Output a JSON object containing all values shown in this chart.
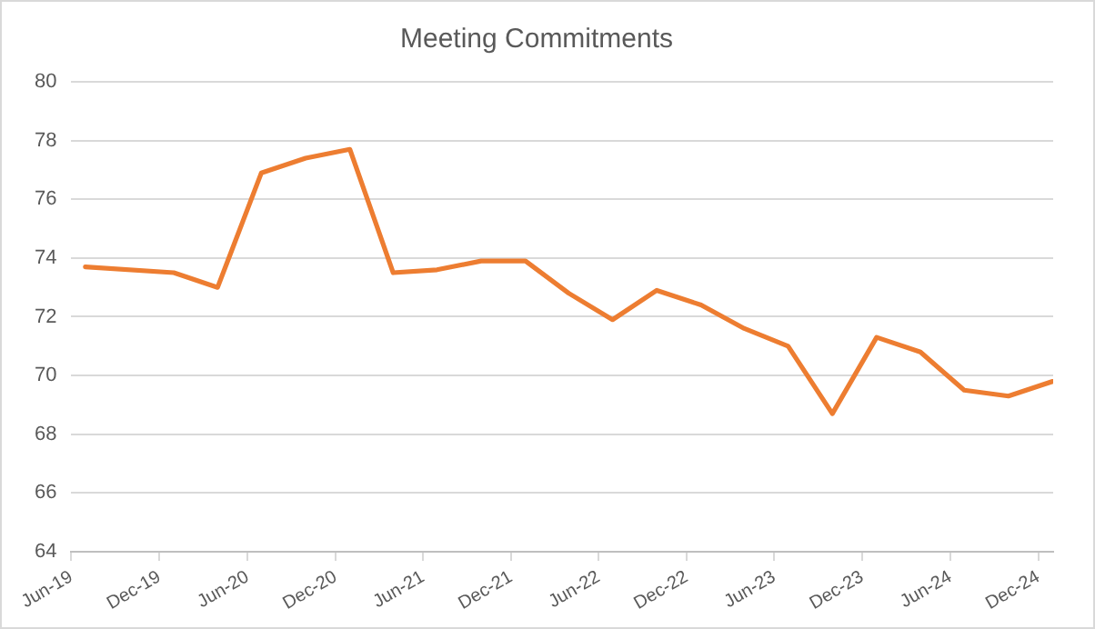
{
  "chart_data": {
    "type": "line",
    "title": "Meeting Commitments",
    "x": [
      "2019-06-30",
      "2019-12-31",
      "2020-03-31",
      "2020-06-30",
      "2020-09-30",
      "2020-12-31",
      "2021-03-31",
      "2021-06-30",
      "2021-09-30",
      "2021-12-31",
      "2022-03-31",
      "2022-06-30",
      "2022-09-30",
      "2022-12-31",
      "2023-03-31",
      "2023-06-30",
      "2023-09-30",
      "2023-12-31",
      "2024-03-31",
      "2024-06-30",
      "2024-09-30",
      "2024-12-31"
    ],
    "series": [
      {
        "color": "#ed7d31",
        "values": [
          73.7,
          73.5,
          73.0,
          76.9,
          77.4,
          77.7,
          73.5,
          73.6,
          73.9,
          73.9,
          72.8,
          71.9,
          72.9,
          72.4,
          71.6,
          71.0,
          68.7,
          71.3,
          70.8,
          69.5,
          69.3,
          69.8
        ]
      }
    ],
    "xlim": [
      "2019-06-01",
      "2025-01-01"
    ],
    "xticks": [
      {
        "value": "2019-06-01",
        "label": "Jun-19"
      },
      {
        "value": "2019-12-01",
        "label": "Dec-19"
      },
      {
        "value": "2020-06-01",
        "label": "Jun-20"
      },
      {
        "value": "2020-12-01",
        "label": "Dec-20"
      },
      {
        "value": "2021-06-01",
        "label": "Jun-21"
      },
      {
        "value": "2021-12-01",
        "label": "Dec-21"
      },
      {
        "value": "2022-06-01",
        "label": "Jun-22"
      },
      {
        "value": "2022-12-01",
        "label": "Dec-22"
      },
      {
        "value": "2023-06-01",
        "label": "Jun-23"
      },
      {
        "value": "2023-12-01",
        "label": "Dec-23"
      },
      {
        "value": "2024-06-01",
        "label": "Jun-24"
      },
      {
        "value": "2024-12-01",
        "label": "Dec-24"
      }
    ],
    "ylim": [
      64,
      80
    ],
    "yticks": [
      64,
      66,
      68,
      70,
      72,
      74,
      76,
      78,
      80
    ],
    "grid": "y",
    "legend": false,
    "marker": "none",
    "line_style": "solid"
  }
}
